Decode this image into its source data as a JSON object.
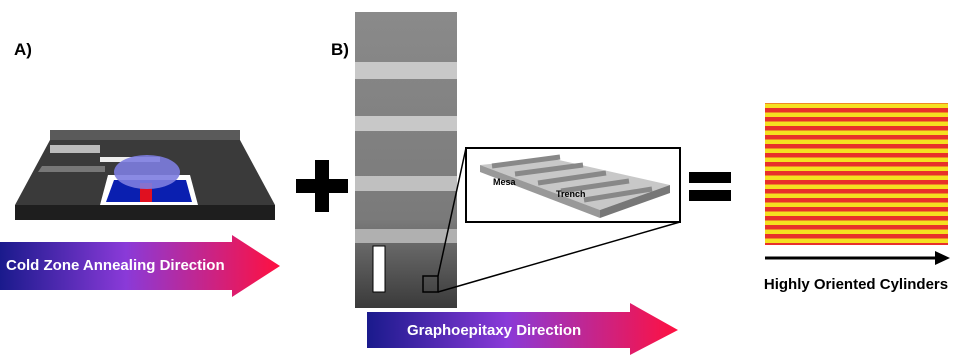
{
  "panels": [
    {
      "label": "A)",
      "arrow_label": "Cold Zone Annealing Direction"
    },
    {
      "label": "B)",
      "arrow_label": "Graphoepitaxy Direction",
      "inset_labels": [
        "Mesa",
        "Trench"
      ]
    }
  ],
  "result_label": "Highly Oriented Cylinders"
}
